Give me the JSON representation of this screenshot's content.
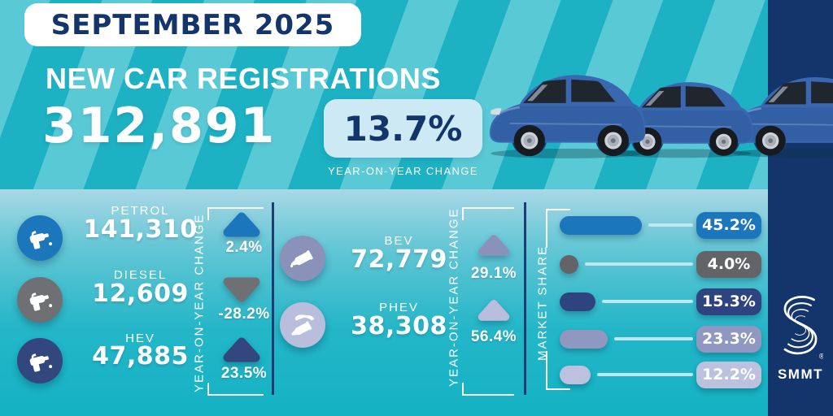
{
  "header": {
    "badge": "SEPTEMBER 2025",
    "title": "NEW CAR REGISTRATIONS",
    "total": "312,891",
    "change": "13.7%",
    "change_label": "YEAR-ON-YEAR CHANGE"
  },
  "fuel_panel": {
    "yoy_label": "YEAR-ON-YEAR CHANGE",
    "rows": [
      {
        "label": "PETROL",
        "value": "141,310",
        "change": "2.4%",
        "direction": "up",
        "color": "#1c76bc"
      },
      {
        "label": "DIESEL",
        "value": "12,609",
        "change": "-28.2%",
        "direction": "down",
        "color": "#6f7073"
      },
      {
        "label": "HEV",
        "value": "47,885",
        "change": "23.5%",
        "direction": "up",
        "color": "#32477e"
      }
    ]
  },
  "ev_panel": {
    "yoy_label": "YEAR-ON-YEAR CHANGE",
    "rows": [
      {
        "label": "BEV",
        "value": "72,779",
        "change": "29.1%",
        "direction": "up",
        "color": "#8b92ba"
      },
      {
        "label": "PHEV",
        "value": "38,308",
        "change": "56.4%",
        "direction": "up",
        "color": "#b9bedc"
      }
    ]
  },
  "market_share": {
    "label": "MARKET SHARE",
    "rows": [
      {
        "value": "45.2%",
        "pct": 45.2,
        "color": "#1c76bc"
      },
      {
        "value": "4.0%",
        "pct": 4.0,
        "color": "#636467"
      },
      {
        "value": "15.3%",
        "pct": 15.3,
        "color": "#2e4480"
      },
      {
        "value": "23.3%",
        "pct": 23.3,
        "color": "#9097c0"
      },
      {
        "value": "12.2%",
        "pct": 12.2,
        "color": "#bcc2de"
      }
    ]
  },
  "logo": {
    "brand": "SMMT",
    "reg": "®"
  },
  "chart_data": [
    {
      "type": "bar",
      "title": "New car registrations — September 2025",
      "total": 312891,
      "total_yoy_change_pct": 13.7,
      "categories": [
        "PETROL",
        "DIESEL",
        "HEV",
        "BEV",
        "PHEV"
      ],
      "series": [
        {
          "name": "Registrations",
          "values": [
            141310,
            12609,
            47885,
            72779,
            38308
          ]
        },
        {
          "name": "Year-on-year change %",
          "values": [
            2.4,
            -28.2,
            23.5,
            29.1,
            56.4
          ]
        }
      ],
      "legend_position": "none",
      "grid": false
    },
    {
      "type": "bar",
      "title": "Market share",
      "unit": "%",
      "categories": [
        "PETROL",
        "DIESEL",
        "HEV",
        "BEV",
        "PHEV"
      ],
      "values": [
        45.2,
        4.0,
        15.3,
        23.3,
        12.2
      ],
      "xlim": [
        0,
        50
      ],
      "grid": false
    }
  ]
}
